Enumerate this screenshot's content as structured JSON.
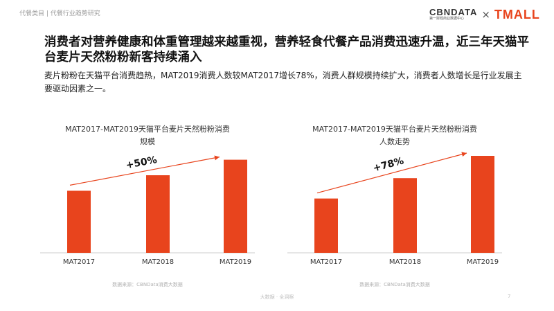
{
  "breadcrumb": "代餐类目 | 代餐行业趋势研究",
  "logo": {
    "cbn_main": "CBNDATA",
    "cbn_sub": "第一财经商业数据中心",
    "times": "×",
    "tmall": "TMALL"
  },
  "headline": "消费者对营养健康和体重管理越来越重视，营养轻食代餐产品消费迅速升温，近三年天猫平台麦片天然粉粉新客持续涌入",
  "subline": "麦片粉粉在天猫平台消费趋热，MAT2019消费人数较MAT2017增长78%，消费人群规模持续扩大，消费者人数增长是行业发展主要驱动因素之一。",
  "colors": {
    "bar": "#e8441d",
    "arrow": "#e8441d",
    "axis": "#cccccc"
  },
  "chart_data": [
    {
      "type": "bar",
      "title": "MAT2017-MAT2019天猫平台麦片天然粉粉消费\n规模",
      "categories": [
        "MAT2017",
        "MAT2018",
        "MAT2019"
      ],
      "values": [
        0.64,
        0.8,
        0.96
      ],
      "annotation": "+50%",
      "source": "数据来源：CBNData消费大数据",
      "legend": "none",
      "grid": false
    },
    {
      "type": "bar",
      "title": "MAT2017-MAT2019天猫平台麦片天然粉粉消费\n人数走势",
      "categories": [
        "MAT2017",
        "MAT2018",
        "MAT2019"
      ],
      "values": [
        0.56,
        0.77,
        1.0
      ],
      "annotation": "+78%",
      "source": "数据来源：CBNData消费大数据",
      "legend": "none",
      "grid": false
    }
  ],
  "footer": "大数据 · 全洞察",
  "page_number": "7"
}
